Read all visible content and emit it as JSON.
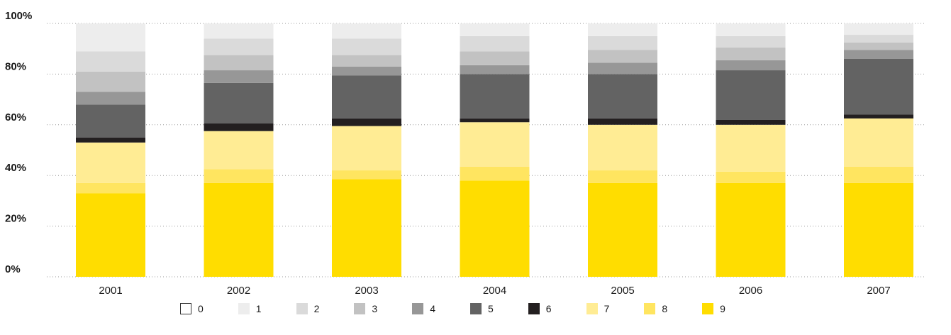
{
  "chart_data": {
    "type": "bar",
    "stacked": true,
    "categories": [
      "2001",
      "2002",
      "2003",
      "2004",
      "2005",
      "2006",
      "2007"
    ],
    "ylim": [
      0,
      100
    ],
    "y_ticks": [
      "0%",
      "20%",
      "40%",
      "60%",
      "80%",
      "100%"
    ],
    "y_tick_values": [
      0,
      20,
      40,
      60,
      80,
      100
    ],
    "grid": true,
    "legend_placement": "bottom",
    "series": [
      {
        "name": "9",
        "color": "#FFDD00",
        "values": [
          33,
          37,
          38.5,
          38,
          37,
          37,
          37
        ]
      },
      {
        "name": "8",
        "color": "#FFE560",
        "values": [
          4,
          5.5,
          3.5,
          5.5,
          5,
          4.5,
          6.5
        ]
      },
      {
        "name": "7",
        "color": "#FFEC94",
        "values": [
          16,
          15,
          17.5,
          17.5,
          18,
          18.5,
          19
        ]
      },
      {
        "name": "6",
        "color": "#231F20",
        "values": [
          2,
          3,
          3,
          1.5,
          2.5,
          2,
          1.5
        ]
      },
      {
        "name": "5",
        "color": "#636363",
        "values": [
          13,
          16,
          17,
          17.5,
          17.5,
          19.5,
          22
        ]
      },
      {
        "name": "4",
        "color": "#979797",
        "values": [
          5,
          5,
          3.5,
          3.5,
          4.5,
          4,
          3.5
        ]
      },
      {
        "name": "3",
        "color": "#C2C2C2",
        "values": [
          8,
          6,
          4.5,
          5.5,
          5,
          5,
          3
        ]
      },
      {
        "name": "2",
        "color": "#DADADA",
        "values": [
          8,
          6.5,
          6.5,
          6,
          5.5,
          4.5,
          3
        ]
      },
      {
        "name": "1",
        "color": "#EDEDED",
        "values": [
          11,
          6,
          6,
          5,
          5,
          5,
          4.5
        ]
      },
      {
        "name": "0",
        "color": "#FFFFFF",
        "values": [
          0,
          0,
          0,
          0,
          0,
          0,
          0
        ]
      }
    ],
    "legend_order": [
      "0",
      "1",
      "2",
      "3",
      "4",
      "5",
      "6",
      "7",
      "8",
      "9"
    ]
  }
}
